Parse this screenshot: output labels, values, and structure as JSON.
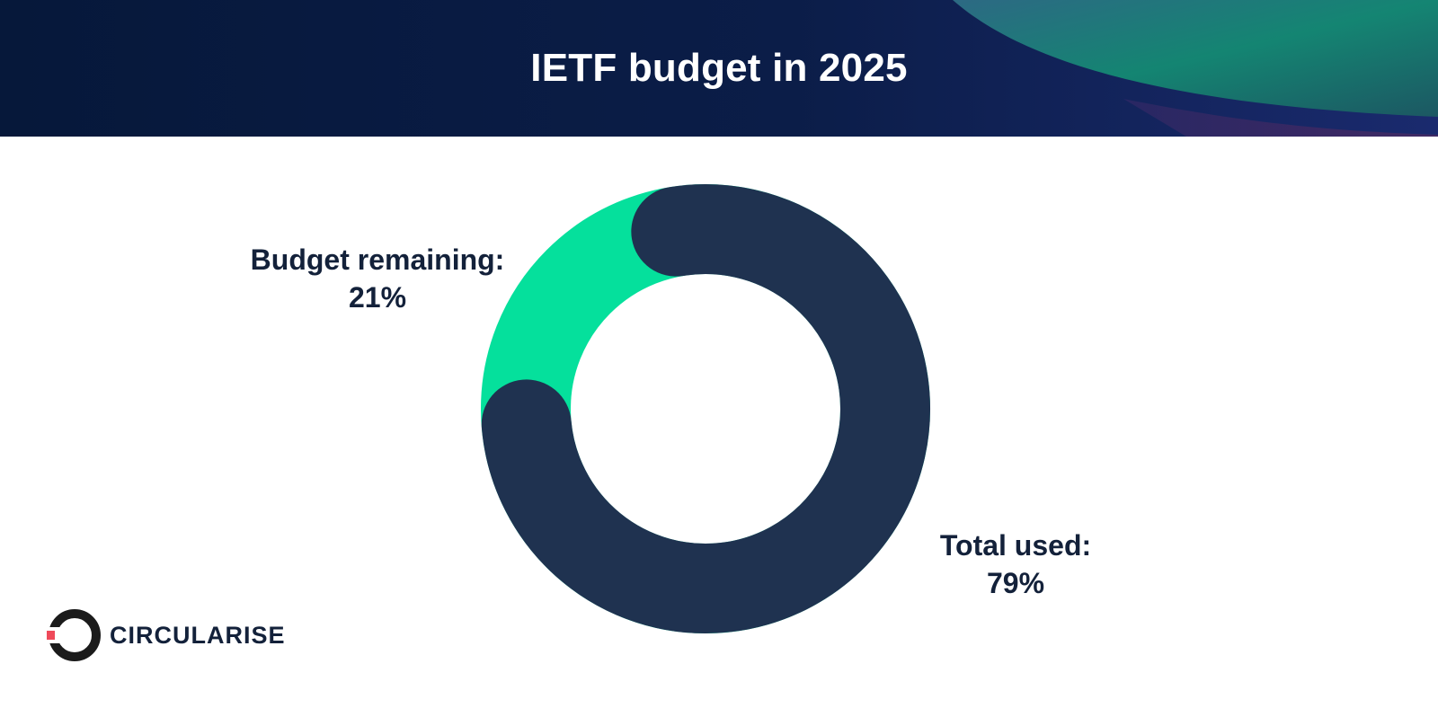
{
  "header": {
    "title": "IETF budget in 2025"
  },
  "chart_data": {
    "type": "pie",
    "variant": "donut",
    "title": "IETF budget in 2025",
    "slices": [
      {
        "label": "Total used:",
        "value": 79,
        "display": "79%",
        "color": "#1f3250"
      },
      {
        "label": "Budget remaining:",
        "value": 21,
        "display": "21%",
        "color": "#05e09c"
      }
    ]
  },
  "logo": {
    "text": "CIRCULARISE",
    "icon": "circularise-logo-icon",
    "colors": {
      "ring": "#1b1b1b",
      "accent": "#ef4a5a"
    }
  },
  "colors": {
    "header_bg": "#0b1b3a",
    "text_dark": "#13213a"
  }
}
